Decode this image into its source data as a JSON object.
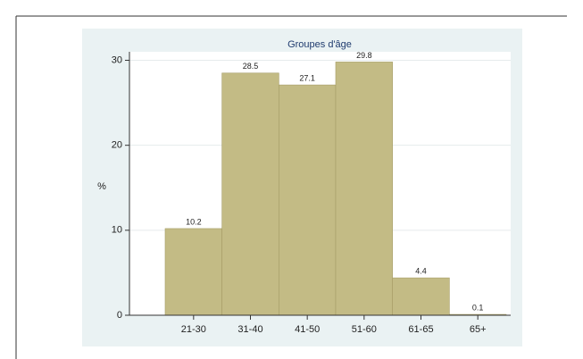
{
  "chart_data": {
    "type": "bar",
    "title": "Groupes d'âge",
    "y_label": "%",
    "categories": [
      "21-30",
      "31-40",
      "41-50",
      "51-60",
      "61-65",
      "65+"
    ],
    "values": [
      10.2,
      28.5,
      27.1,
      29.8,
      4.4,
      0.1
    ],
    "value_labels": [
      "10.2",
      "28.5",
      "27.1",
      "29.8",
      "4.4",
      "0.1"
    ],
    "color": "#c3bb85",
    "ylim": [
      0,
      31
    ],
    "yticks": [
      0,
      10,
      20,
      30
    ],
    "grid": true
  }
}
